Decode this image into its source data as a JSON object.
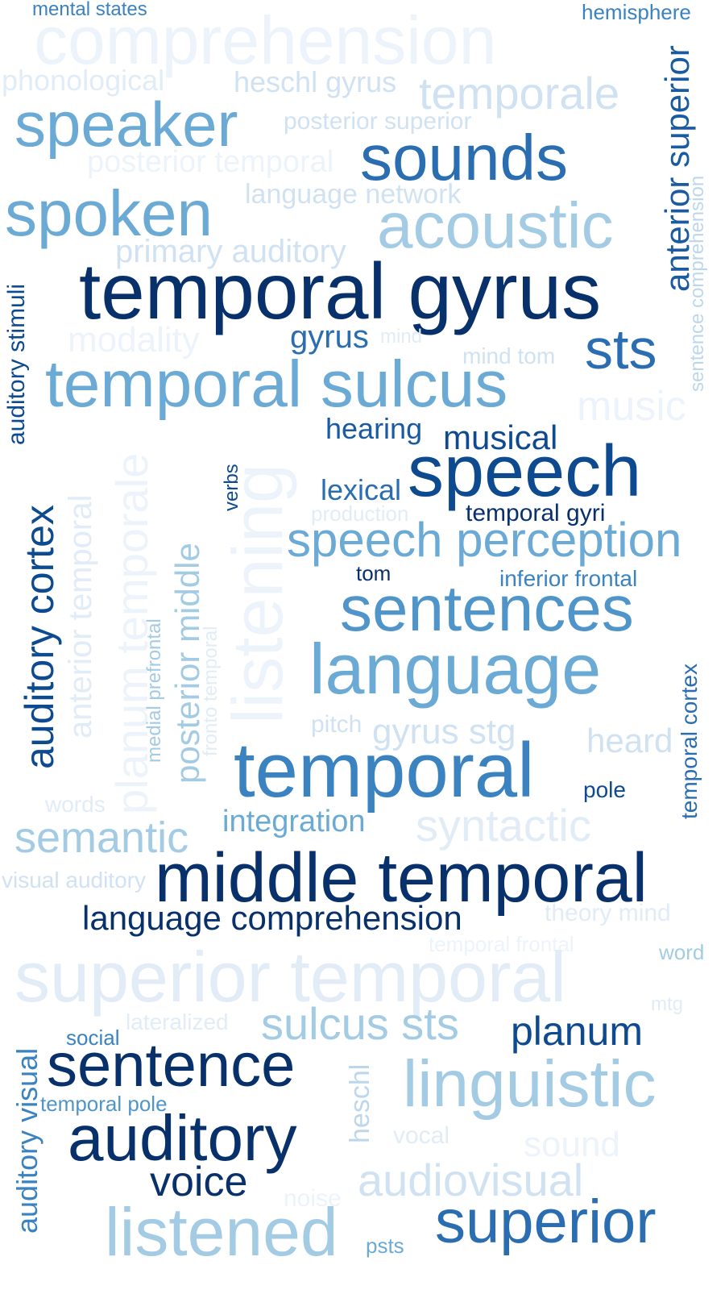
{
  "words": {
    "mental_states": "mental states",
    "comprehension": "comprehension",
    "hemisphere": "hemisphere",
    "phonological": "phonological",
    "heschl_gyrus": "heschl gyrus",
    "temporale": "temporale",
    "speaker": "speaker",
    "posterior_superior": "posterior superior",
    "anterior_superior": "anterior superior",
    "sounds": "sounds",
    "posterior_temporal": "posterior temporal",
    "sentence_comprehension": "sentence comprehension",
    "spoken": "spoken",
    "language_network": "language network",
    "acoustic": "acoustic",
    "primary_auditory": "primary auditory",
    "auditory_stimuli": "auditory stimuli",
    "temporal_gyrus": "temporal gyrus",
    "modality": "modality",
    "gyrus": "gyrus",
    "mind": "mind",
    "sts": "sts",
    "mind_tom": "mind tom",
    "temporal_sulcus": "temporal sulcus",
    "music": "music",
    "hearing": "hearing",
    "musical": "musical",
    "auditory_cortex": "auditory cortex",
    "anterior_temporal": "anterior temporal",
    "planum_temporale": "planum temporale",
    "listening": "listening",
    "verbs": "verbs",
    "lexical": "lexical",
    "speech": "speech",
    "production": "production",
    "temporal_gyri": "temporal gyri",
    "speech_perception": "speech perception",
    "posterior_middle": "posterior middle",
    "tom": "tom",
    "inferior_frontal": "inferior frontal",
    "medial_prefrontal": "medial prefrontal",
    "fronto_temporal": "fronto temporal",
    "sentences": "sentences",
    "temporal_cortex": "temporal cortex",
    "language": "language",
    "pitch": "pitch",
    "gyrus_stg": "gyrus stg",
    "heard": "heard",
    "temporal": "temporal",
    "pole": "pole",
    "words": "words",
    "integration": "integration",
    "syntactic": "syntactic",
    "semantic": "semantic",
    "visual_auditory": "visual auditory",
    "middle_temporal": "middle temporal",
    "language_comprehension": "language comprehension",
    "theory_mind": "theory mind",
    "temporal_frontal": "temporal frontal",
    "word": "word",
    "superior_temporal": "superior temporal",
    "mtg": "mtg",
    "lateralized": "lateralized",
    "social": "social",
    "sulcus_sts": "sulcus sts",
    "planum": "planum",
    "auditory_visual": "auditory visual",
    "sentence": "sentence",
    "heschl": "heschl",
    "linguistic": "linguistic",
    "temporal_pole": "temporal pole",
    "auditory": "auditory",
    "vocal": "vocal",
    "sound": "sound",
    "voice": "voice",
    "audiovisual": "audiovisual",
    "noise": "noise",
    "superior": "superior",
    "listened": "listened",
    "psts": "psts"
  }
}
